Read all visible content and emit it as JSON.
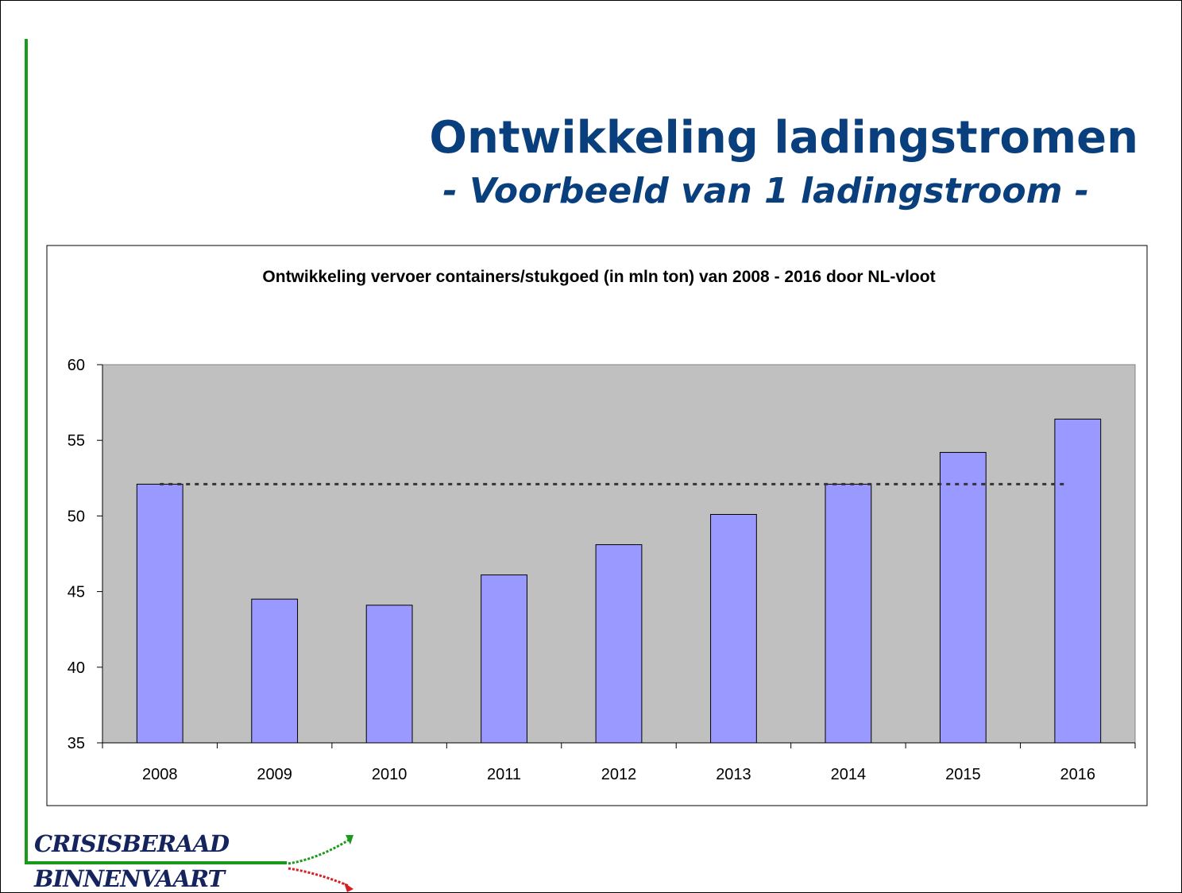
{
  "slide": {
    "title": "Ontwikkeling ladingstromen",
    "subtitle": "- Voorbeeld van 1 ladingstroom -",
    "logo": [
      "CRISISBERAAD",
      "BINNENVAART"
    ]
  },
  "chart_data": {
    "type": "bar",
    "title": "Ontwikkeling vervoer containers/stukgoed (in mln ton) van 2008 - 2016 door NL-vloot",
    "categories": [
      "2008",
      "2009",
      "2010",
      "2011",
      "2012",
      "2013",
      "2014",
      "2015",
      "2016"
    ],
    "values": [
      52.1,
      44.5,
      44.1,
      46.1,
      48.1,
      50.1,
      52.1,
      54.2,
      56.4
    ],
    "color": "#9999ff",
    "reference_line": 52.1,
    "ylim": [
      35,
      60
    ],
    "yticks": [
      35,
      40,
      45,
      50,
      55,
      60
    ],
    "grid": false
  }
}
